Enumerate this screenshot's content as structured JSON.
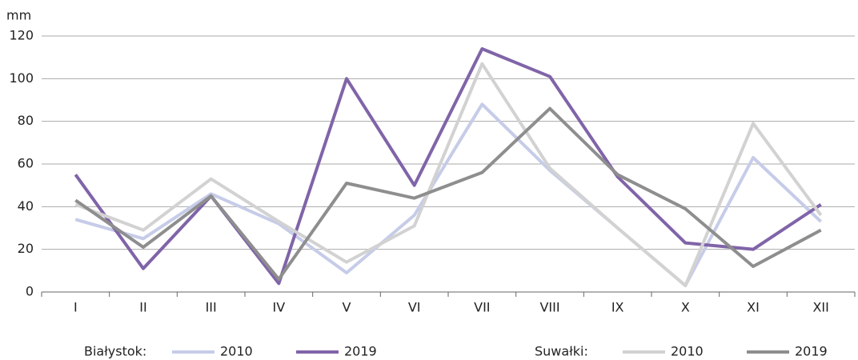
{
  "chart_data": {
    "type": "line",
    "y_label": "mm",
    "categories": [
      "I",
      "II",
      "III",
      "IV",
      "V",
      "VI",
      "VII",
      "VIII",
      "IX",
      "X",
      "XI",
      "XII"
    ],
    "ylim": [
      0,
      120
    ],
    "yticks": [
      0,
      20,
      40,
      60,
      80,
      100,
      120
    ],
    "grid": true,
    "legend_groups": [
      "Białystok:",
      "Suwałki:"
    ],
    "series": [
      {
        "name": "2010",
        "color": "#c6cce8",
        "values": [
          34,
          25,
          46,
          32,
          9,
          36,
          88,
          57,
          30,
          3,
          63,
          33
        ]
      },
      {
        "name": "2019",
        "color": "#8064a8",
        "values": [
          55,
          11,
          45,
          4,
          100,
          50,
          114,
          101,
          54,
          23,
          20,
          41
        ]
      },
      {
        "name": "2010",
        "color": "#d2d2d2",
        "values": [
          41,
          29,
          53,
          33,
          14,
          31,
          107,
          58,
          30,
          3,
          79,
          36
        ]
      },
      {
        "name": "2019",
        "color": "#8e8e8e",
        "values": [
          43,
          21,
          45,
          6,
          51,
          44,
          56,
          86,
          55,
          39,
          12,
          29
        ]
      }
    ]
  }
}
